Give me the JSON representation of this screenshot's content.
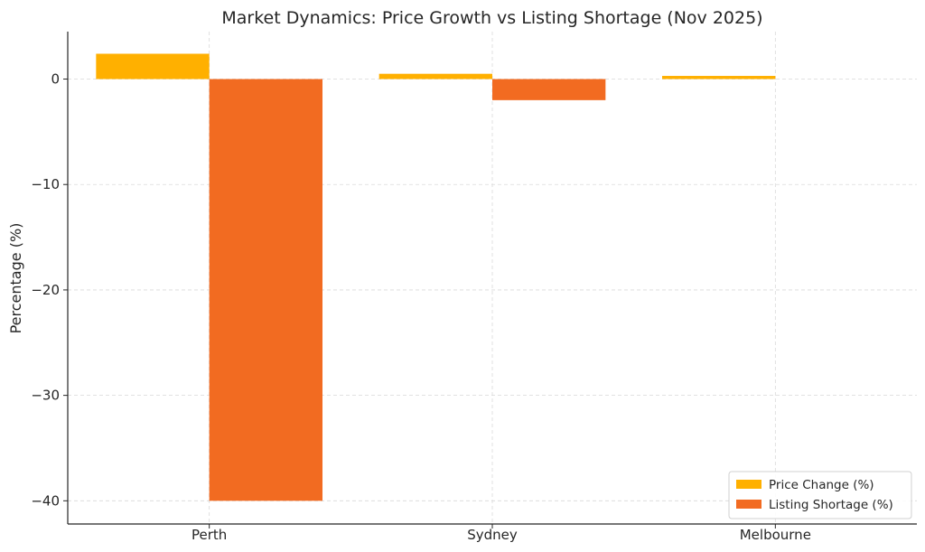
{
  "chart_data": {
    "type": "bar",
    "title": "Market Dynamics: Price Growth vs Listing Shortage (Nov 2025)",
    "xlabel": "",
    "ylabel": "Percentage (%)",
    "categories": [
      "Perth",
      "Sydney",
      "Melbourne"
    ],
    "series": [
      {
        "name": "Price Change (%)",
        "color": "#FFB000",
        "values": [
          2.4,
          0.5,
          0.3
        ]
      },
      {
        "name": "Listing Shortage (%)",
        "color": "#F26B21",
        "values": [
          -40,
          -2,
          0
        ]
      }
    ],
    "ylim": [
      -42.2,
      4.5
    ],
    "yticks": [
      0,
      -10,
      -20,
      -30,
      -40
    ],
    "ytick_labels": [
      "0",
      "−10",
      "−20",
      "−30",
      "−40"
    ],
    "grid": true,
    "legend_position": "bottom-right"
  }
}
